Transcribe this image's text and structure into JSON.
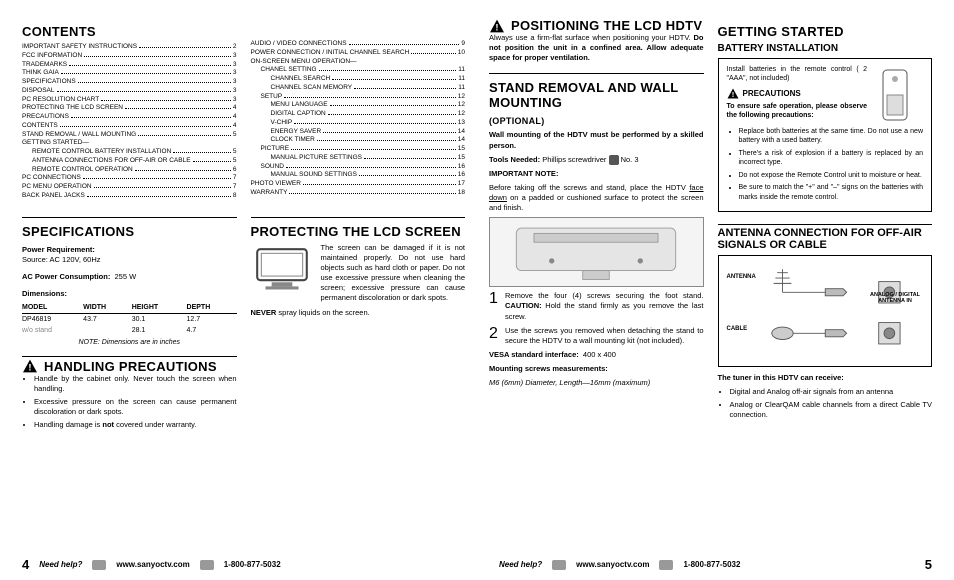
{
  "left": {
    "contents_heading": "CONTENTS",
    "toc_col1": [
      {
        "label": "IMPORTANT SAFETY INSTRUCTIONS",
        "pg": "2"
      },
      {
        "label": "FCC INFORMATION",
        "pg": "3"
      },
      {
        "label": "TRADEMARKS",
        "pg": "3"
      },
      {
        "label": "THINK GAIA",
        "pg": "3"
      },
      {
        "label": "SPECIFICATIONS",
        "pg": "3"
      },
      {
        "label": "DISPOSAL",
        "pg": "3"
      },
      {
        "label": "PC RESOLUTION CHART",
        "pg": "3"
      },
      {
        "label": "PROTECTING THE LCD SCREEN",
        "pg": "4"
      },
      {
        "label": "PRECAUTIONS",
        "pg": "4"
      },
      {
        "label": "CONTENTS",
        "pg": "4"
      },
      {
        "label": "STAND REMOVAL / WALL MOUNTING",
        "pg": "5"
      },
      {
        "label": "GETTING STARTED—",
        "pg": "",
        "noline": true
      },
      {
        "label": "Remote Control Battery Installation",
        "pg": "5",
        "indent": 1
      },
      {
        "label": "Antenna Connections for off-air or cable",
        "pg": "5",
        "indent": 1
      },
      {
        "label": "Remote Control operation",
        "pg": "6",
        "indent": 1
      },
      {
        "label": "PC CONNECTIONS",
        "pg": "7"
      },
      {
        "label": "PC MENU OPERATION",
        "pg": "7"
      },
      {
        "label": "BACK PANEL JACKS",
        "pg": "8"
      }
    ],
    "toc_col2": [
      {
        "label": "AUDIO / VIDEO CONNECTIONS",
        "pg": "9"
      },
      {
        "label": "POWER CONNECTION / INITIAL CHANNEL SEARCH",
        "pg": "10"
      },
      {
        "label": "ON-SCREEN MENU OPERATION—",
        "pg": "",
        "noline": true
      },
      {
        "label": "Chanel Setting",
        "pg": "11",
        "indent": 1
      },
      {
        "label": "Channel Search",
        "pg": "11",
        "indent": 2
      },
      {
        "label": "Channel Scan Memory",
        "pg": "11",
        "indent": 2
      },
      {
        "label": "Setup",
        "pg": "12",
        "indent": 1
      },
      {
        "label": "Menu Language",
        "pg": "12",
        "indent": 2
      },
      {
        "label": "Digital Caption",
        "pg": "12",
        "indent": 2
      },
      {
        "label": "V-Chip",
        "pg": "13",
        "indent": 2
      },
      {
        "label": "Energy Saver",
        "pg": "14",
        "indent": 2
      },
      {
        "label": "Clock Timer",
        "pg": "14",
        "indent": 2
      },
      {
        "label": "Picture",
        "pg": "15",
        "indent": 1
      },
      {
        "label": "Manual Picture Settings",
        "pg": "15",
        "indent": 2
      },
      {
        "label": "Sound",
        "pg": "16",
        "indent": 1
      },
      {
        "label": "Manual Sound Settings",
        "pg": "16",
        "indent": 2
      },
      {
        "label": "PHOTO VIEWER",
        "pg": "17"
      },
      {
        "label": "WARRANTY",
        "pg": "18"
      }
    ],
    "specs_heading": "SPECIFICATIONS",
    "power_req_label": "Power Requirement:",
    "power_req_value": "Source: AC 120V, 60Hz",
    "ac_power_label": "AC Power Consumption:",
    "ac_power_value": "255 W",
    "dim_label": "Dimensions:",
    "dim_headers": [
      "MODEL",
      "WIDTH",
      "HEIGHT",
      "DEPTH"
    ],
    "dim_rows": [
      [
        "DP46819",
        "43.7",
        "30.1",
        "12.7"
      ],
      [
        "w/o stand",
        "",
        "28.1",
        "4.7"
      ]
    ],
    "dim_note": "NOTE: Dimensions are in inches",
    "handling_heading": "HANDLING PRECAUTIONS",
    "handling_items": [
      "Handle by the cabinet only. Never touch the screen when handling.",
      "Excessive pressure on the screen can cause permanent discoloration or dark spots.",
      "Handling damage is <b>not</b> covered under warranty."
    ],
    "protect_heading": "PROTECTING THE LCD SCREEN",
    "protect_para": "The screen can be damaged if it is not maintained properly. Do not use hard objects such as hard cloth or paper. Do not use excessive pressure when cleaning the screen; excessive pressure can cause permanent discoloration or dark spots.",
    "protect_never": "<b>NEVER</b> spray liquids on the screen."
  },
  "right": {
    "positioning_heading": "POSITIONING THE LCD HDTV",
    "positioning_para": "Always use a firm-flat surface when positioning your HDTV. <b>Do not position the unit in a confined area. Allow adequate space for proper ventilation.</b>",
    "stand_heading": "STAND REMOVAL AND WALL MOUNTING",
    "stand_optional": "(OPTIONAL)",
    "stand_sub": "Wall mounting of the HDTV must be performed by a skilled person.",
    "tools_label": "Tools Needed:",
    "tools_value": "Phillips screwdriver",
    "tools_no": "No. 3",
    "important_note_label": "IMPORTANT NOTE:",
    "important_note": "Before taking off the screws and stand, place the HDTV <u>face down</u> on a padded or cushioned surface to protect the screen and finish.",
    "steps": [
      "Remove the four (4) screws securing the foot stand. <b>CAUTION:</b> Hold the stand firmly as you remove the last screw.",
      "Use the screws you removed when detaching the stand to secure the HDTV to a wall mounting kit (not included)."
    ],
    "vesa_label": "VESA standard interface:",
    "vesa_value": "400 x 400",
    "mount_screws_label": "Mounting screws measurements:",
    "mount_screws_value": "M6 (6mm) Diameter, Length—16mm (maximum)",
    "getting_heading": "GETTING STARTED",
    "battery_heading": "BATTERY INSTALLATION",
    "battery_intro": "Install batteries in the remote control ( 2 \"AAA\", not included)",
    "precautions_heading": "PRECAUTIONS",
    "precautions_lead": "To ensure safe operation, please observe the following precautions:",
    "precautions_items": [
      "Replace both batteries at the same time. Do not use a new battery with a used battery.",
      "There's a risk of explosion if a battery is replaced by an incorrect type.",
      "Do not expose the Remote Control unit to moisture or heat.",
      "Be sure to match the \"+\" and \"–\" signs on the batteries with marks inside the remote control."
    ],
    "antenna_heading": "ANTENNA CONNECTION FOR OFF-AIR SIGNALS OR CABLE",
    "antenna_labels": {
      "antenna": "ANTENNA",
      "cable": "CABLE",
      "jack": "ANALOG / DIGITAL ANTENNA IN"
    },
    "tuner_lead": "The tuner in this HDTV can receive:",
    "tuner_items": [
      "Digital and Analog off-air signals from an antenna",
      "Analog or ClearQAM cable channels from a direct Cable TV connection."
    ]
  },
  "footer": {
    "help": "Need help?",
    "web": "www.sanyoctv.com",
    "phone": "1-800-877-5032",
    "page_left": "4",
    "page_right": "5"
  }
}
